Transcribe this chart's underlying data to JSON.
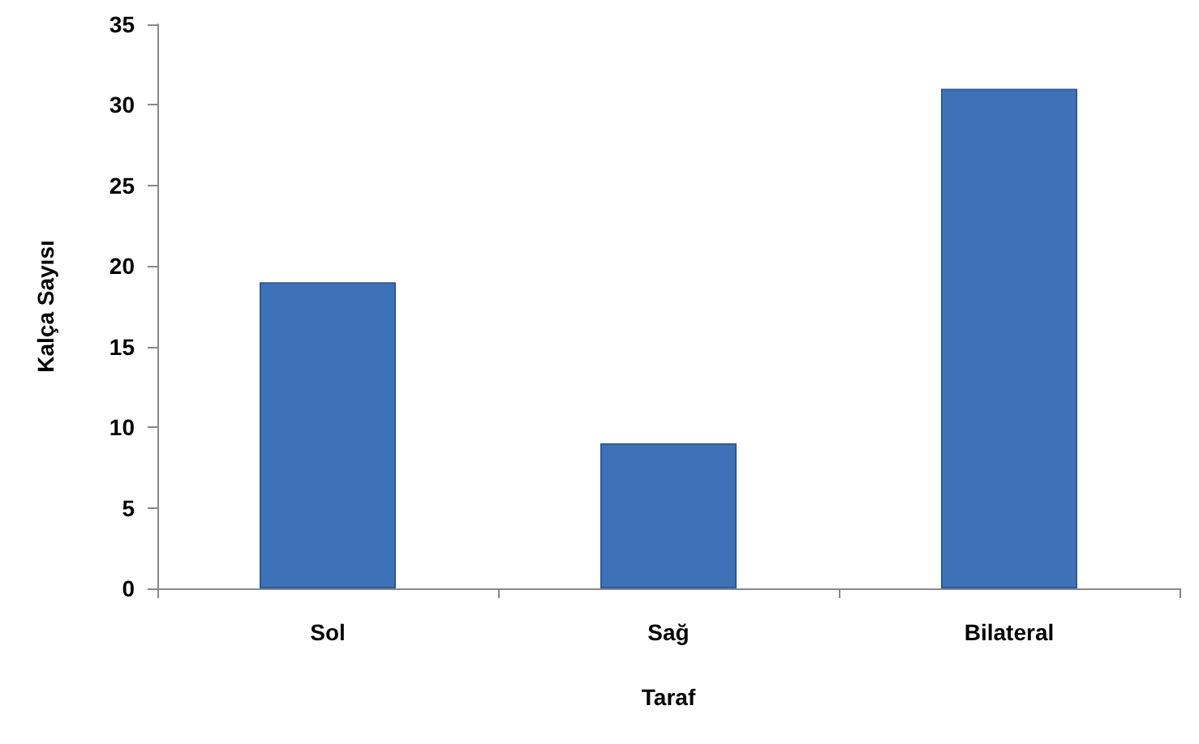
{
  "chart_data": {
    "type": "bar",
    "xlabel": "Taraf",
    "ylabel": "Kalça Sayısı",
    "categories": [
      "Sol",
      "Sağ",
      "Bilateral"
    ],
    "values": [
      19,
      9,
      31
    ],
    "color": "#3e72b8",
    "ylim": [
      0,
      35
    ],
    "yticks": [
      0,
      5,
      10,
      15,
      20,
      25,
      30,
      35
    ],
    "grid": false
  }
}
